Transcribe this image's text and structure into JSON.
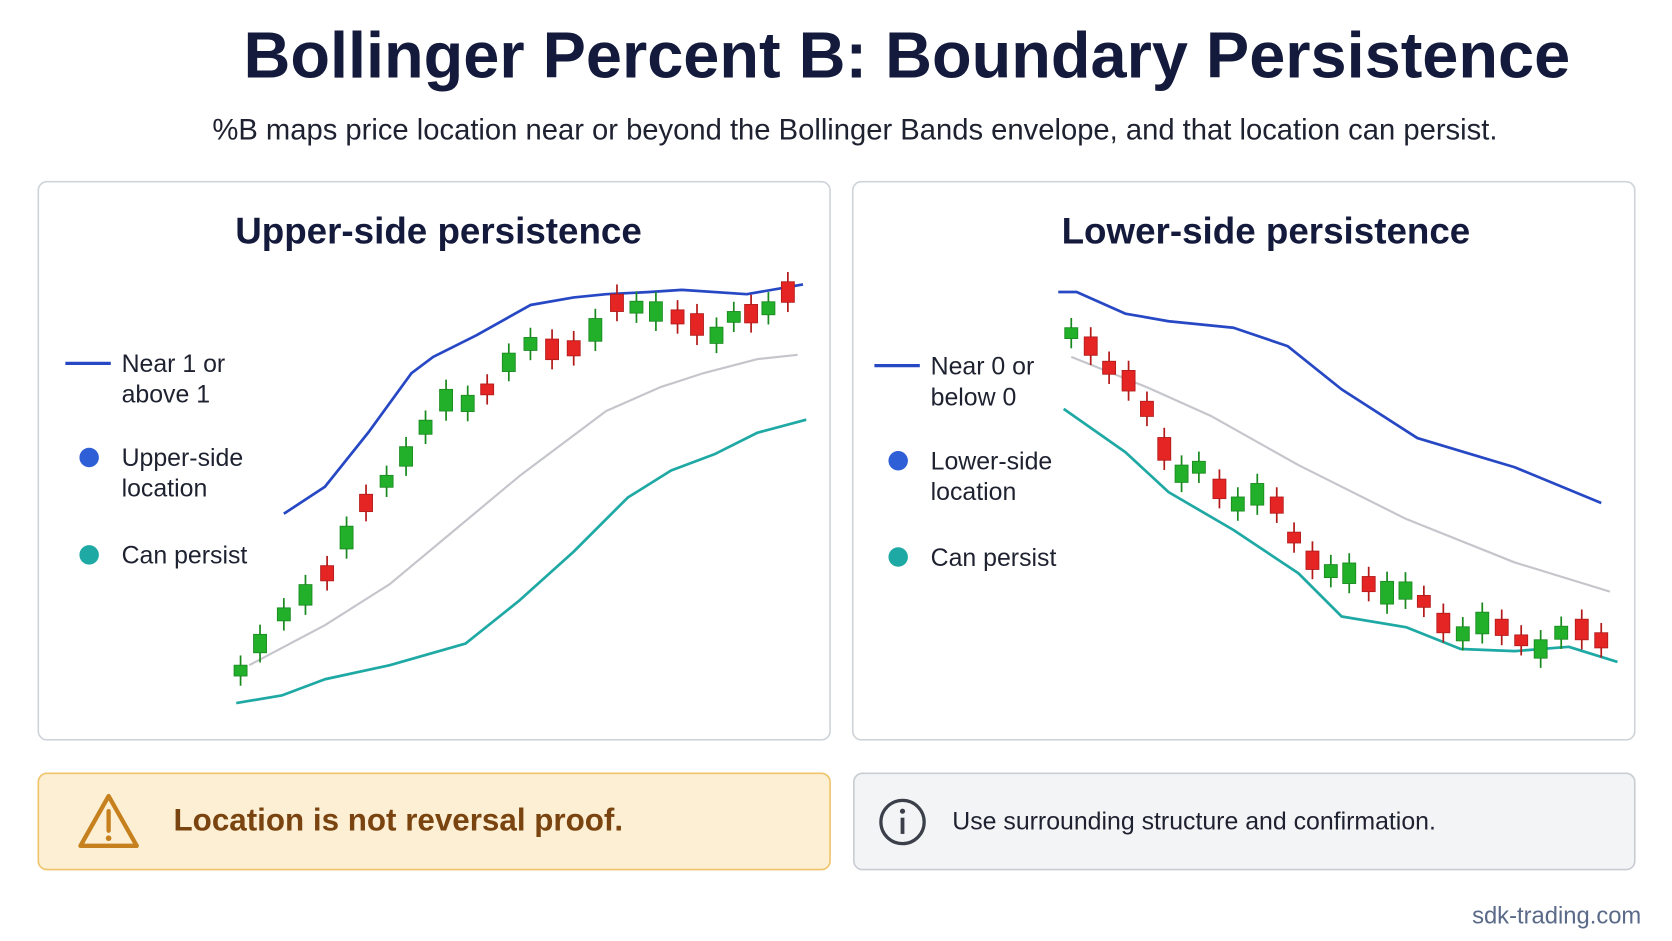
{
  "header": {
    "title": "Bollinger Percent B: Boundary Persistence",
    "subtitle": "%B maps price location near or beyond the Bollinger Bands envelope, and that location can persist."
  },
  "panels": [
    {
      "title": "Upper-side persistence",
      "legend": [
        [
          "Near 1 or",
          "above 1"
        ],
        [
          "Upper-side",
          "location"
        ],
        [
          "Can persist"
        ]
      ]
    },
    {
      "title": "Lower-side persistence",
      "legend": [
        [
          "Near 0 or",
          "below 0"
        ],
        [
          "Lower-side",
          "location"
        ],
        [
          "Can persist"
        ]
      ]
    }
  ],
  "callouts": {
    "warning": "Location is not reversal proof.",
    "info": "Use surrounding structure and confirmation."
  },
  "footer": "sdk-trading.com"
}
